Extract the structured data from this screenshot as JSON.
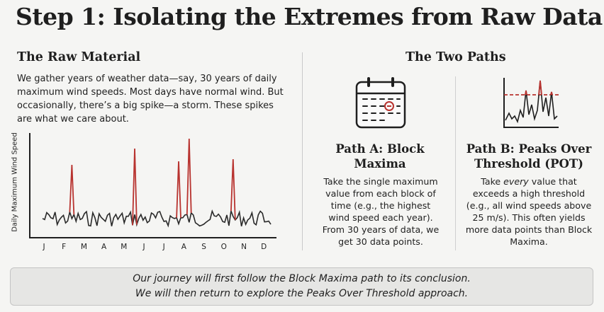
{
  "title": "Step 1: Isolating the Extremes from Raw Data",
  "raw": {
    "heading": "The Raw Material",
    "body": "We gather years of weather data—say, 30 years of daily maximum wind speeds. Most days have normal wind. But occasionally, there’s a big spike—a storm. These spikes are what we care about."
  },
  "chart_data": {
    "type": "line",
    "ylabel": "Daily Maximum Wind Speed",
    "xlabel": "",
    "categories": [
      "J",
      "F",
      "M",
      "A",
      "M",
      "J",
      "J",
      "A",
      "S",
      "O",
      "N",
      "D"
    ],
    "series_color": "#2a2a2a",
    "spike_color": "#b8332f"
  },
  "paths": {
    "heading": "The Two Paths",
    "a": {
      "title_line1": "Path A: Block",
      "title_line2": "Maxima",
      "body": "Take the single maximum value from each block of time (e.g., the highest wind speed each year). From 30 years of data, we get 30 data points.",
      "icon": "calendar-icon"
    },
    "b": {
      "title_line1": "Path B: Peaks Over",
      "title_line2": "Threshold (POT)",
      "body_pre": "Take ",
      "body_em": "every",
      "body_post": " value that exceeds a high threshold (e.g., all wind speeds above 25 m/s). This often yields more data points than Block Maxima.",
      "icon": "threshold-chart-icon"
    }
  },
  "banner": {
    "line1": "Our journey will first follow the Block Maxima path to its conclusion.",
    "line2": "We will then return to explore the Peaks Over Threshold approach."
  }
}
